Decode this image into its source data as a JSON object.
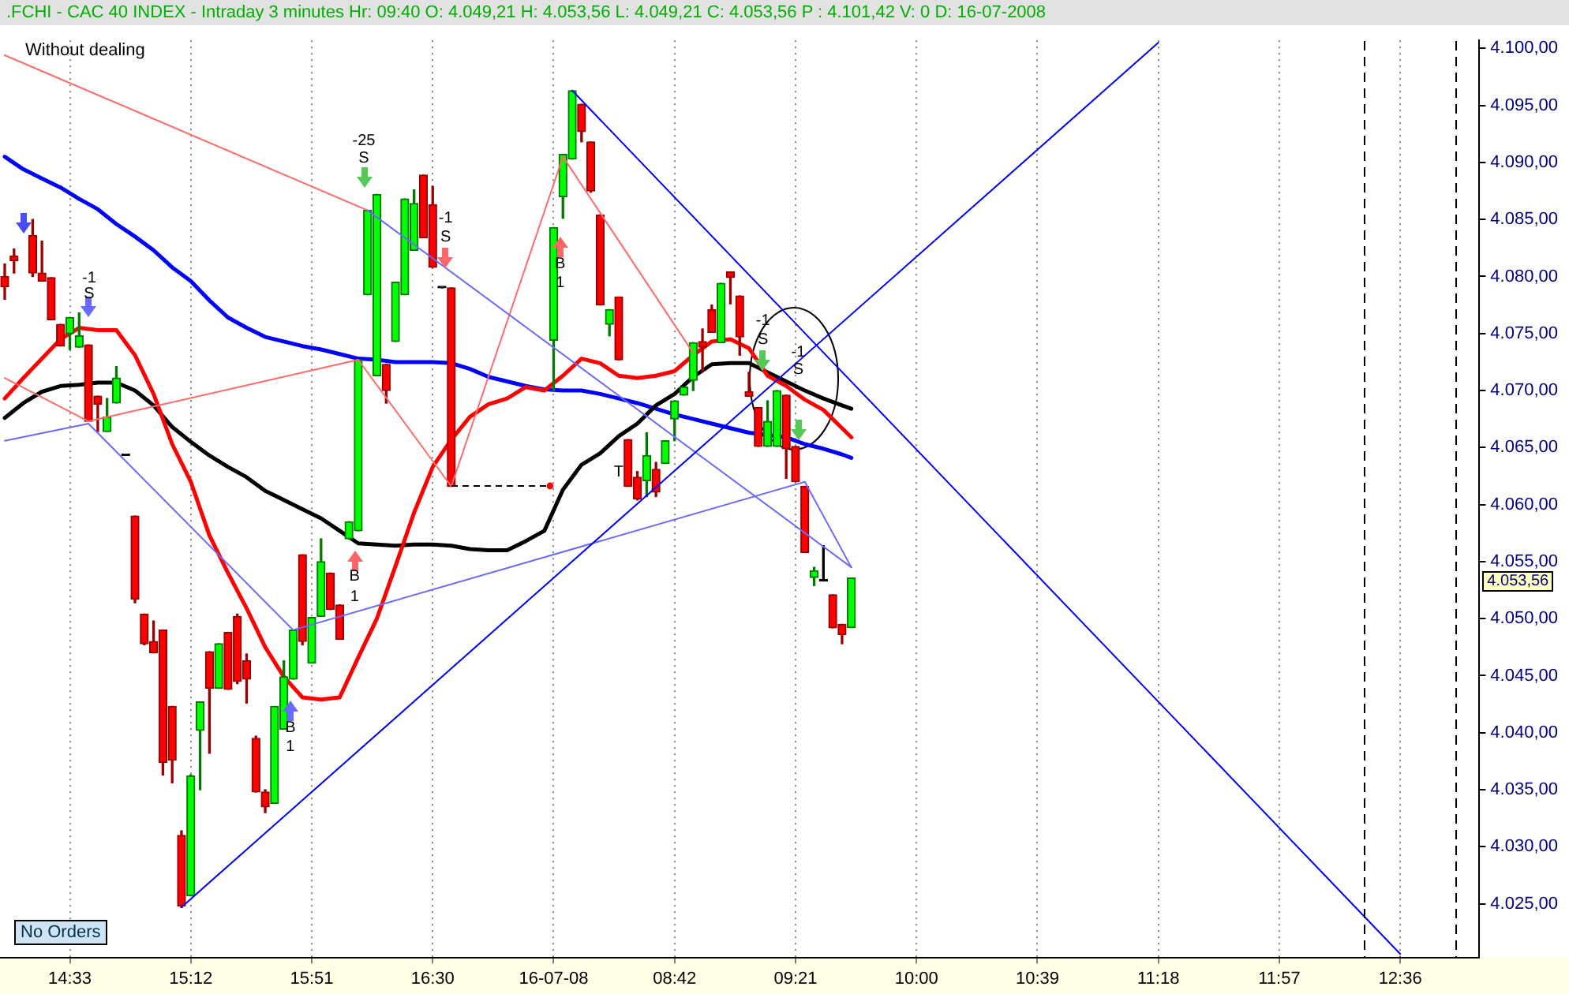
{
  "chart_data": {
    "type": "candlestick",
    "title": ".FCHI - CAC 40 INDEX - Intraday 3 minutes  Hr: 09:40  O: 4.049,21  H: 4.053,56  L: 4.049,21  C: 4.053,56  P : 4.101,42  V: 0  D: 16-07-2008",
    "subtitle": "Without dealing",
    "categories": [
      null,
      null,
      null,
      null,
      null,
      null,
      null,
      "14:33",
      null,
      null,
      null,
      null,
      null,
      null,
      null,
      null,
      null,
      null,
      null,
      null,
      "15:12",
      null,
      null,
      null,
      null,
      null,
      null,
      null,
      null,
      null,
      null,
      null,
      null,
      "15:51",
      null,
      null,
      null,
      null,
      null,
      null,
      null,
      null,
      null,
      null,
      null,
      null,
      "16:30",
      null,
      null,
      null,
      null,
      null,
      null,
      null,
      null,
      null,
      null,
      null,
      null,
      "16-07-08",
      null,
      null,
      null,
      null,
      null,
      null,
      null,
      null,
      null,
      null,
      null,
      null,
      "08:42",
      null,
      null,
      null,
      null,
      null,
      null,
      null,
      null,
      null,
      null,
      null,
      null,
      "09:21",
      null,
      null,
      null,
      null,
      null,
      null,
      null,
      null,
      null,
      null,
      null,
      null,
      "10:00",
      null,
      null,
      null,
      null,
      null,
      null,
      null,
      null,
      null,
      null,
      null,
      null,
      "10:39",
      null,
      null,
      null,
      null,
      null,
      null,
      null,
      null,
      null,
      null,
      null,
      null,
      "11:18",
      null,
      null,
      null,
      null,
      null,
      null,
      null,
      null,
      null,
      null,
      null,
      null,
      "11:57",
      null,
      null,
      null,
      null,
      null,
      null,
      null,
      null,
      null,
      null,
      null,
      null,
      "12:36",
      null,
      null,
      null,
      null,
      null,
      null,
      null,
      null
    ],
    "ohlc": [
      [
        4080.0,
        4081.1,
        4078.0,
        4079.1
      ],
      [
        4081.8,
        4082.4,
        4080.3,
        4081.4
      ],
      null,
      [
        4083.6,
        4085.0,
        4080.0,
        4080.3
      ],
      [
        4080.3,
        4083.1,
        4079.6,
        4079.6
      ],
      [
        4079.9,
        4079.9,
        4076.2,
        4076.2
      ],
      [
        4075.8,
        4075.8,
        4073.9,
        4073.9
      ],
      [
        4075.0,
        4076.4,
        4073.6,
        4076.4
      ],
      [
        4073.8,
        4076.8,
        4073.8,
        4074.8
      ],
      [
        4074.0,
        4074.0,
        4067.3,
        4067.3
      ],
      [
        4069.5,
        4069.5,
        4066.4,
        4068.8
      ],
      [
        4066.4,
        4069.3,
        4066.4,
        4067.7
      ],
      [
        4068.9,
        4072.1,
        4068.9,
        4071.1
      ],
      [
        4064.3,
        4064.3,
        4064.3,
        4064.3
      ],
      [
        4059.0,
        4059.0,
        4051.4,
        4051.7
      ],
      [
        4050.4,
        4050.4,
        4047.7,
        4047.8
      ],
      [
        4048.0,
        4049.8,
        4047.0,
        4047.0
      ],
      [
        4049.0,
        4049.0,
        4036.3,
        4037.4
      ],
      [
        4042.3,
        4042.3,
        4035.6,
        4037.6
      ],
      [
        4031.0,
        4031.4,
        4024.7,
        4024.8
      ],
      [
        4025.7,
        4036.3,
        4025.7,
        4036.2
      ],
      [
        4040.2,
        4042.7,
        4035.0,
        4042.7
      ],
      [
        4047.1,
        4047.1,
        4038.2,
        4043.9
      ],
      [
        4043.9,
        4047.8,
        4043.9,
        4047.8
      ],
      [
        4048.8,
        4048.8,
        4043.8,
        4043.8
      ],
      [
        4050.2,
        4050.4,
        4044.3,
        4044.5
      ],
      [
        4046.3,
        4046.9,
        4042.6,
        4044.7
      ],
      [
        4039.5,
        4039.7,
        4034.8,
        4034.8
      ],
      [
        4034.8,
        4035.0,
        4033.0,
        4033.5
      ],
      [
        4033.8,
        4042.3,
        4033.8,
        4042.3
      ],
      [
        4040.3,
        4046.3,
        4040.3,
        4044.9
      ],
      [
        4044.7,
        4049.0,
        4044.7,
        4049.0
      ],
      [
        4055.6,
        4055.6,
        4047.7,
        4048.0
      ],
      [
        4046.1,
        4050.1,
        4046.1,
        4050.1
      ],
      [
        4050.2,
        4057.0,
        4050.2,
        4055.0
      ],
      [
        4054.0,
        4054.0,
        4050.8,
        4050.8
      ],
      [
        4051.2,
        4051.2,
        4048.2,
        4048.2
      ],
      [
        4057.0,
        4058.5,
        4057.0,
        4058.5
      ],
      [
        4057.7,
        4072.7,
        4057.7,
        4072.7
      ],
      [
        4078.4,
        4085.8,
        4078.4,
        4085.8
      ],
      [
        4071.3,
        4087.2,
        4071.3,
        4087.2
      ],
      [
        4072.3,
        4072.3,
        4068.9,
        4070.0
      ],
      [
        4074.3,
        4079.5,
        4074.3,
        4079.5
      ],
      [
        4078.4,
        4086.8,
        4078.4,
        4086.8
      ],
      [
        4082.3,
        4087.6,
        4082.3,
        4086.4
      ],
      [
        4088.9,
        4088.9,
        4083.4,
        4083.4
      ],
      [
        4086.3,
        4087.9,
        4080.8,
        4080.8
      ],
      [
        4079.0,
        4079.0,
        4079.0,
        4079.0
      ],
      [
        4079.0,
        4079.0,
        4061.6,
        4061.6
      ],
      null,
      null,
      null,
      null,
      null,
      null,
      null,
      null,
      null,
      null,
      [
        4074.4,
        4084.3,
        4070.0,
        4084.3
      ],
      [
        4087.0,
        4090.7,
        4085.1,
        4090.7
      ],
      [
        4090.3,
        4096.3,
        4090.3,
        4096.3
      ],
      [
        4095.1,
        4095.1,
        4091.8,
        4092.7
      ],
      [
        4091.8,
        4091.8,
        4087.4,
        4087.5
      ],
      [
        4085.4,
        4085.4,
        4077.5,
        4077.5
      ],
      [
        4075.8,
        4077.1,
        4074.8,
        4077.1
      ],
      [
        4078.2,
        4078.2,
        4072.7,
        4072.7
      ],
      [
        4065.7,
        4065.7,
        4061.6,
        4061.6
      ],
      [
        4062.4,
        4062.9,
        4060.4,
        4060.5
      ],
      [
        4062.1,
        4066.3,
        4060.7,
        4064.3
      ],
      [
        4063.1,
        4063.7,
        4060.7,
        4061.1
      ],
      [
        4063.6,
        4065.6,
        4063.6,
        4065.6
      ],
      [
        4067.5,
        4069.1,
        4065.6,
        4069.1
      ],
      [
        4069.6,
        4070.3,
        4069.6,
        4070.3
      ],
      [
        4070.9,
        4074.2,
        4070.0,
        4074.2
      ],
      [
        4074.3,
        4075.4,
        4071.7,
        4073.8
      ],
      [
        4077.1,
        4077.5,
        4075.1,
        4075.1
      ],
      [
        4074.2,
        4079.4,
        4074.2,
        4079.4
      ],
      [
        4080.4,
        4080.4,
        4077.6,
        4079.9
      ],
      [
        4078.3,
        4078.3,
        4073.1,
        4074.7
      ],
      [
        4069.9,
        4071.6,
        4069.5,
        4069.5
      ],
      [
        4068.5,
        4068.5,
        4065.1,
        4065.1
      ],
      [
        4065.1,
        4069.1,
        4065.1,
        4067.3
      ],
      [
        4065.1,
        4070.0,
        4065.1,
        4070.0
      ],
      [
        4069.6,
        4069.6,
        4062.3,
        4064.9
      ],
      [
        4065.1,
        4065.1,
        4062.0,
        4062.0
      ],
      [
        4061.6,
        4061.6,
        4055.8,
        4055.8
      ],
      [
        4053.6,
        4054.5,
        4052.9,
        4054.2
      ],
      [
        4053.3,
        4056.4,
        4053.3,
        4053.3
      ],
      [
        4052.1,
        4052.1,
        4049.2,
        4049.2
      ],
      [
        4049.5,
        4049.5,
        4047.8,
        4048.6
      ],
      [
        4049.21,
        4053.56,
        4049.21,
        4053.56
      ],
      null,
      null,
      null,
      null,
      null,
      null,
      null,
      null,
      null,
      null,
      null,
      null,
      null,
      null,
      null,
      null,
      null,
      null,
      null,
      null,
      null,
      null,
      null,
      null,
      null,
      null,
      null,
      null,
      null,
      null,
      null,
      null,
      null,
      null,
      null,
      null,
      null,
      null,
      null,
      null,
      null,
      null,
      null,
      null,
      null,
      null,
      null,
      null,
      null,
      null,
      null,
      null,
      null,
      null,
      null,
      null,
      null,
      null,
      null,
      null,
      null,
      null,
      null,
      null,
      null,
      null,
      null
    ],
    "series": [
      {
        "type": "line",
        "color": "#ff0000",
        "values": [
          4069.3,
          null,
          4071.1,
          null,
          4072.8,
          null,
          4074.5,
          null,
          4075.5,
          null,
          4075.3,
          null,
          4075.3,
          null,
          4073.1,
          null,
          4069.7,
          null,
          4065.3,
          null,
          4062.0,
          null,
          4057.3,
          null,
          4054.0,
          null,
          4050.9,
          null,
          4047.5,
          null,
          4044.9,
          null,
          4043.1,
          null,
          4042.9,
          null,
          4043.1,
          null,
          4046.6,
          null,
          4050.0,
          null,
          4054.6,
          null,
          4059.3,
          null,
          4063.3,
          null,
          4065.7,
          null,
          4067.7,
          null,
          4068.8,
          null,
          4069.3,
          null,
          4070.3,
          null,
          4070.0,
          null,
          4071.3,
          null,
          4072.8,
          null,
          4072.4,
          null,
          4071.3,
          null,
          4071.1,
          null,
          4071.3,
          null,
          4071.7,
          null,
          4073.1,
          null,
          4074.3,
          null,
          4074.5,
          null,
          4073.7,
          null,
          4071.3,
          null,
          4070.4,
          null,
          4069.2,
          null,
          4068.3,
          null,
          4066.7,
          4065.9,
          null,
          null,
          null,
          null,
          null,
          null,
          null,
          null,
          null,
          null,
          null,
          null,
          null,
          null,
          null,
          null,
          null,
          null,
          null,
          null,
          null,
          null,
          null,
          null,
          null,
          null,
          null,
          null,
          null,
          null,
          null,
          null,
          null,
          null,
          null,
          null,
          null,
          null,
          null,
          null,
          null,
          null,
          null,
          null,
          null,
          null,
          null,
          null,
          null,
          null,
          null,
          null,
          null,
          null,
          null,
          null,
          null,
          null,
          null,
          null,
          null,
          null,
          null,
          null,
          null,
          null,
          null
        ]
      },
      {
        "type": "line",
        "color": "#000000",
        "values": [
          4067.6,
          null,
          4068.9,
          null,
          4069.9,
          null,
          4070.4,
          null,
          4070.5,
          null,
          4070.7,
          null,
          4070.7,
          null,
          4070.0,
          null,
          4068.7,
          null,
          4066.8,
          null,
          4065.5,
          null,
          4064.3,
          null,
          4063.3,
          null,
          4062.4,
          null,
          4061.2,
          null,
          4060.4,
          null,
          4059.6,
          null,
          4058.8,
          null,
          4057.7,
          null,
          4056.6,
          null,
          4056.5,
          null,
          4056.4,
          null,
          4056.5,
          null,
          4056.5,
          null,
          4056.4,
          null,
          4056.1,
          null,
          4056.0,
          null,
          4056.0,
          null,
          4056.8,
          null,
          4057.7,
          null,
          4061.3,
          null,
          4063.5,
          null,
          4064.5,
          null,
          4066.0,
          null,
          4067.1,
          null,
          4068.7,
          null,
          4069.7,
          null,
          4071.2,
          null,
          4072.3,
          null,
          4072.4,
          null,
          4072.4,
          null,
          4071.6,
          null,
          4070.8,
          null,
          4070.0,
          null,
          4069.3,
          null,
          4068.7,
          4068.4,
          null,
          null,
          null,
          null,
          null,
          null,
          null,
          null,
          null,
          null,
          null,
          null,
          null,
          null,
          null,
          null,
          null,
          null,
          null,
          null,
          null,
          null,
          null,
          null,
          null,
          null,
          null,
          null,
          null,
          null,
          null,
          null,
          null,
          null,
          null,
          null,
          null,
          null,
          null,
          null,
          null,
          null,
          null,
          null,
          null,
          null,
          null,
          null,
          null,
          null,
          null,
          null,
          null,
          null,
          null,
          null,
          null,
          null,
          null,
          null,
          null,
          null,
          null,
          null,
          null,
          null,
          null
        ]
      },
      {
        "type": "line",
        "color": "#0000ff",
        "values": [
          4090.5,
          null,
          4089.4,
          null,
          4088.6,
          null,
          4087.8,
          null,
          4086.8,
          null,
          4085.9,
          null,
          4084.6,
          null,
          4083.5,
          null,
          4082.3,
          null,
          4080.8,
          null,
          4079.6,
          null,
          4077.9,
          null,
          4076.4,
          null,
          4075.5,
          null,
          4074.7,
          null,
          4074.3,
          null,
          4073.9,
          null,
          4073.6,
          null,
          4073.2,
          null,
          4072.8,
          null,
          4072.7,
          null,
          4072.5,
          null,
          4072.5,
          null,
          4072.5,
          null,
          4072.4,
          null,
          4071.9,
          null,
          4071.2,
          null,
          4070.8,
          null,
          4070.4,
          null,
          4070.1,
          null,
          4070.0,
          null,
          4070.0,
          null,
          4069.7,
          null,
          4069.3,
          null,
          4068.9,
          null,
          4068.4,
          null,
          4067.9,
          null,
          4067.5,
          null,
          4067.1,
          null,
          4066.7,
          null,
          4066.3,
          null,
          4066.1,
          null,
          4065.9,
          null,
          4065.3,
          null,
          4064.9,
          null,
          4064.4,
          4064.1,
          null,
          null,
          null,
          null,
          null,
          null,
          null,
          null,
          null,
          null,
          null,
          null,
          null,
          null,
          null,
          null,
          null,
          null,
          null,
          null,
          null,
          null,
          null,
          null,
          null,
          null,
          null,
          null,
          null,
          null,
          null,
          null,
          null,
          null,
          null,
          null,
          null,
          null,
          null,
          null,
          null,
          null,
          null,
          null,
          null,
          null,
          null,
          null,
          null,
          null,
          null,
          null,
          null,
          null,
          null,
          null,
          null,
          null,
          null,
          null,
          null,
          null,
          null,
          null,
          null,
          null,
          null
        ]
      },
      {
        "type": "line",
        "color": "#0000ff",
        "values": [
          null,
          null,
          null,
          null,
          null,
          null,
          null,
          null,
          null,
          null,
          null,
          null,
          null,
          null,
          null,
          null,
          null,
          null,
          null,
          4024.7,
          null,
          null,
          null,
          null,
          null,
          null,
          null,
          null,
          null,
          null,
          null,
          null,
          null,
          null,
          null,
          null,
          null,
          null,
          null,
          null,
          null,
          null,
          null,
          null,
          null,
          null,
          null,
          null,
          null,
          null,
          null,
          null,
          null,
          null,
          null,
          null,
          null,
          null,
          null,
          null,
          null,
          null,
          null,
          null,
          null,
          null,
          null,
          null,
          null,
          null,
          null,
          null,
          null,
          null,
          null,
          null,
          null,
          null,
          null,
          null,
          null,
          null,
          null,
          null,
          null,
          null,
          null,
          null,
          null,
          null,
          null,
          null,
          null,
          null,
          null,
          null,
          null,
          null,
          null,
          null,
          null,
          null,
          null,
          null,
          null,
          null,
          null,
          null,
          null,
          null,
          null,
          null,
          null,
          null,
          null,
          null,
          null,
          null,
          null,
          null,
          null,
          null,
          null,
          null,
          4100.5,
          null,
          null,
          null,
          null,
          null,
          null,
          null,
          null,
          null,
          null,
          null,
          null,
          null,
          null,
          null,
          null,
          null,
          null,
          null,
          null,
          null,
          null,
          null,
          null,
          null,
          null,
          null,
          null,
          null,
          null,
          null,
          null,
          null,
          null
        ]
      },
      {
        "type": "line",
        "color": "#0000ff",
        "values": [
          null,
          null,
          null,
          null,
          null,
          null,
          null,
          null,
          null,
          null,
          null,
          null,
          null,
          null,
          null,
          null,
          null,
          null,
          null,
          null,
          null,
          null,
          null,
          null,
          null,
          null,
          null,
          null,
          null,
          null,
          null,
          null,
          null,
          null,
          null,
          null,
          null,
          null,
          null,
          null,
          null,
          null,
          null,
          null,
          null,
          null,
          null,
          null,
          null,
          null,
          null,
          null,
          null,
          null,
          null,
          null,
          null,
          null,
          null,
          null,
          null,
          4096.3,
          null,
          null,
          null,
          null,
          null,
          null,
          null,
          null,
          null,
          null,
          null,
          null,
          null,
          null,
          null,
          null,
          null,
          null,
          null,
          null,
          null,
          null,
          null,
          null,
          null,
          null,
          null,
          null,
          null,
          null,
          null,
          null,
          null,
          null,
          null,
          null,
          null,
          null,
          null,
          null,
          null,
          null,
          null,
          null,
          null,
          null,
          null,
          null,
          null,
          null,
          null,
          null,
          null,
          null,
          null,
          null,
          null,
          null,
          null,
          null,
          null,
          null,
          null,
          null,
          null,
          null,
          null,
          null,
          null,
          null,
          null,
          null,
          null,
          null,
          null,
          null,
          null,
          null,
          null,
          null,
          null,
          null,
          null,
          null,
          null,
          null,
          null,
          null,
          4020.6,
          null,
          null,
          null,
          null,
          null,
          null,
          null,
          null
        ]
      },
      {
        "type": "line",
        "color": "#6a6aff",
        "values": [
          4065.6,
          null,
          null,
          null,
          null,
          null,
          null,
          null,
          null,
          4067.1,
          null,
          null,
          null,
          null,
          null,
          null,
          null,
          null,
          null,
          null,
          null,
          null,
          null,
          null,
          null,
          null,
          null,
          null,
          null,
          null,
          null,
          4049.0,
          null,
          null,
          null,
          null,
          null,
          null,
          null,
          null,
          null,
          null,
          null,
          null,
          null,
          null,
          null,
          null,
          null,
          null,
          null,
          null,
          null,
          null,
          null,
          null,
          null,
          null,
          null,
          null,
          null,
          null,
          null,
          null,
          null,
          null,
          null,
          null,
          null,
          null,
          null,
          null,
          null,
          null,
          null,
          null,
          null,
          null,
          null,
          null,
          null,
          null,
          null,
          null,
          null,
          null,
          4062.0,
          null,
          null,
          null,
          null,
          4054.5,
          null,
          null,
          null,
          null,
          null,
          null,
          null,
          null,
          null,
          null,
          null,
          null,
          null,
          null,
          null,
          null,
          null,
          null,
          null,
          null,
          null,
          null,
          null,
          null,
          null,
          null,
          null,
          null,
          null,
          null,
          null,
          null,
          null,
          null,
          null,
          null,
          null,
          null,
          null,
          null,
          null,
          null,
          null,
          null,
          null,
          null,
          null,
          null,
          null,
          null,
          null,
          null,
          null,
          null,
          null,
          null,
          null,
          null,
          null,
          null,
          null,
          null,
          null,
          null,
          null,
          null,
          null
        ]
      },
      {
        "type": "line",
        "color": "#6a6aff",
        "values": [
          null,
          null,
          null,
          null,
          null,
          null,
          null,
          null,
          null,
          null,
          null,
          null,
          null,
          null,
          null,
          null,
          null,
          null,
          null,
          null,
          null,
          null,
          null,
          null,
          null,
          null,
          null,
          null,
          null,
          null,
          null,
          null,
          null,
          null,
          null,
          null,
          null,
          null,
          null,
          4085.8,
          null,
          null,
          null,
          null,
          null,
          null,
          null,
          null,
          null,
          null,
          null,
          null,
          null,
          null,
          null,
          null,
          null,
          null,
          null,
          null,
          null,
          null,
          null,
          null,
          null,
          null,
          null,
          null,
          null,
          null,
          null,
          null,
          null,
          null,
          null,
          null,
          null,
          null,
          null,
          null,
          null,
          null,
          null,
          null,
          null,
          null,
          null,
          null,
          null,
          null,
          null,
          4054.5,
          null,
          null,
          null,
          null,
          null,
          null,
          null,
          null,
          null,
          null,
          null,
          null,
          null,
          null,
          null,
          null,
          null,
          null,
          null,
          null,
          null,
          null,
          null,
          null,
          null,
          null,
          null,
          null,
          null,
          null,
          null,
          null,
          null,
          null,
          null,
          null,
          null,
          null,
          null,
          null,
          null,
          null,
          null,
          null,
          null,
          null,
          null,
          null,
          null,
          null,
          null,
          null,
          null,
          null,
          null,
          null,
          null,
          null,
          null,
          null,
          null,
          null,
          null,
          null,
          null,
          null,
          null
        ]
      },
      {
        "type": "line",
        "color": "#ff6b6b",
        "values": [
          4071.1,
          null,
          null,
          null,
          null,
          null,
          null,
          null,
          null,
          4067.3,
          null,
          null,
          null,
          null,
          null,
          null,
          null,
          null,
          null,
          null,
          null,
          null,
          null,
          null,
          null,
          null,
          null,
          null,
          null,
          null,
          null,
          null,
          null,
          null,
          null,
          null,
          null,
          null,
          4072.7,
          null,
          null,
          null,
          null,
          null,
          null,
          null,
          null,
          null,
          4061.6,
          null,
          null,
          null,
          null,
          null,
          null,
          null,
          null,
          null,
          null,
          null,
          4090.5,
          null,
          null,
          null,
          null,
          null,
          null,
          null,
          null,
          null,
          null,
          null,
          null,
          null,
          4073.3,
          null,
          null,
          null,
          null,
          null,
          null,
          null,
          null,
          null,
          null,
          null,
          null,
          null,
          null,
          null,
          null,
          null,
          null,
          null,
          null,
          null,
          null,
          null,
          null,
          null,
          null,
          null,
          null,
          null,
          null,
          null,
          null,
          null,
          null,
          null,
          null,
          null,
          null,
          null,
          null,
          null,
          null,
          null,
          null,
          null,
          null,
          null,
          null,
          null,
          null,
          null,
          null,
          null,
          null,
          null,
          null,
          null,
          null,
          null,
          null,
          null,
          null,
          null,
          null,
          null,
          null,
          null,
          null,
          null,
          null,
          null,
          null,
          null,
          null,
          null,
          null,
          null,
          null,
          null,
          null,
          null,
          null,
          null,
          null
        ]
      },
      {
        "type": "line",
        "color": "#ff6b6b",
        "values": [
          4099.4,
          null,
          null,
          null,
          null,
          null,
          null,
          null,
          null,
          null,
          null,
          null,
          null,
          null,
          null,
          null,
          null,
          null,
          null,
          null,
          null,
          null,
          null,
          null,
          null,
          null,
          null,
          null,
          null,
          null,
          null,
          null,
          null,
          null,
          null,
          null,
          null,
          null,
          null,
          4085.8,
          null,
          null,
          null,
          null,
          null,
          null,
          null,
          null,
          null,
          null,
          null,
          null,
          null,
          null,
          null,
          null,
          null,
          null,
          null,
          null,
          null,
          null,
          null,
          null,
          null,
          null,
          null,
          null,
          null,
          null,
          null,
          null,
          null,
          null,
          null,
          null,
          null,
          null,
          null,
          null,
          null,
          null,
          null,
          null,
          null,
          null,
          null,
          null,
          null,
          null,
          null,
          null,
          null,
          null,
          null,
          null,
          null,
          null,
          null,
          null,
          null,
          null,
          null,
          null,
          null,
          null,
          null,
          null,
          null,
          null,
          null,
          null,
          null,
          null,
          null,
          null,
          null,
          null,
          null,
          null,
          null,
          null,
          null,
          null,
          null,
          null,
          null,
          null,
          null,
          null,
          null,
          null,
          null,
          null,
          null,
          null,
          null,
          null,
          null,
          null,
          null,
          null,
          null,
          null,
          null,
          null,
          null,
          null,
          null,
          null,
          null,
          null,
          null,
          null,
          null,
          null,
          null,
          null,
          null
        ]
      }
    ],
    "ylim": [
      4020.3,
      4100.7
    ],
    "yticks": [
      {
        "value": 4025,
        "label": "4.025,00"
      },
      {
        "value": 4030,
        "label": "4.030,00"
      },
      {
        "value": 4035,
        "label": "4.035,00"
      },
      {
        "value": 4040,
        "label": "4.040,00"
      },
      {
        "value": 4045,
        "label": "4.045,00"
      },
      {
        "value": 4050,
        "label": "4.050,00"
      },
      {
        "value": 4055,
        "label": "4.055,00"
      },
      {
        "value": 4060,
        "label": "4.060,00"
      },
      {
        "value": 4065,
        "label": "4.065,00"
      },
      {
        "value": 4070,
        "label": "4.070,00"
      },
      {
        "value": 4075,
        "label": "4.075,00"
      },
      {
        "value": 4080,
        "label": "4.080,00"
      },
      {
        "value": 4085,
        "label": "4.085,00"
      },
      {
        "value": 4090,
        "label": "4.090,00"
      },
      {
        "value": 4095,
        "label": "4.095,00"
      },
      {
        "value": 4100,
        "label": "4.100,00"
      }
    ],
    "grid": "x",
    "annotations": [
      "-1",
      "S",
      "-25",
      "S",
      "-1",
      "S",
      "B",
      "1",
      "B",
      "1",
      "B",
      "1",
      "-1",
      "S",
      "-1",
      "S",
      "T",
      "No Orders",
      "4.053,56"
    ]
  }
}
